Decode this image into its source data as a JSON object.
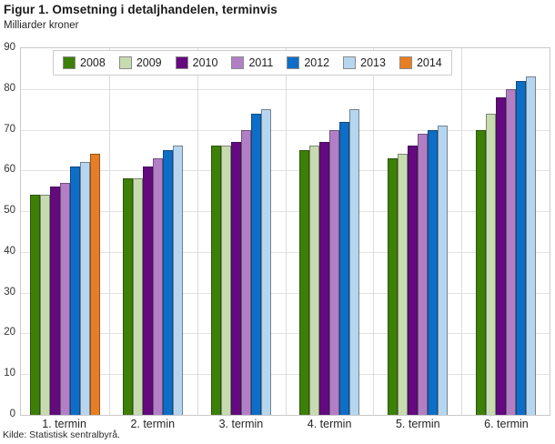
{
  "title": "Figur 1. Omsetning i detaljhandelen, terminvis",
  "subtitle": "Milliarder kroner",
  "source": "Kilde: Statistisk sentralbyrå.",
  "colors": {
    "plot_border": "#c9c9c9",
    "gridline": "#e2e2e2",
    "background": "#ffffff"
  },
  "chart_data": {
    "type": "bar",
    "title": "Figur 1. Omsetning i detaljhandelen, terminvis",
    "ylabel": "Milliarder kroner",
    "xlabel": "",
    "categories": [
      "1. termin",
      "2. termin",
      "3. termin",
      "4. termin",
      "5. termin",
      "6. termin"
    ],
    "series": [
      {
        "name": "2008",
        "color": "#3c8006",
        "values": [
          54,
          58,
          66,
          65,
          63,
          70
        ]
      },
      {
        "name": "2009",
        "color": "#c7dbb0",
        "values": [
          54,
          58,
          66,
          66,
          64,
          74
        ]
      },
      {
        "name": "2010",
        "color": "#650980",
        "values": [
          56,
          61,
          67,
          67,
          66,
          78
        ]
      },
      {
        "name": "2011",
        "color": "#b27fc7",
        "values": [
          57,
          63,
          70,
          70,
          69,
          80
        ]
      },
      {
        "name": "2012",
        "color": "#0d6ec7",
        "values": [
          61,
          65,
          74,
          72,
          70,
          82
        ]
      },
      {
        "name": "2013",
        "color": "#b6d6f0",
        "values": [
          62,
          66,
          75,
          75,
          71,
          83
        ]
      },
      {
        "name": "2014",
        "color": "#e87e23",
        "values": [
          64,
          null,
          null,
          null,
          null,
          null
        ]
      }
    ],
    "ylim": [
      0,
      90
    ],
    "ytick_step": 10,
    "grid": true,
    "legend_position": "top"
  }
}
